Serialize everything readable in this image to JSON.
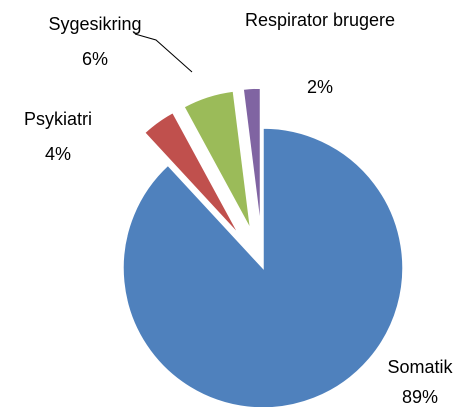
{
  "chart_data": {
    "type": "pie",
    "categories": [
      "Somatik",
      "Psykiatri",
      "Sygesikring",
      "Respirator brugere"
    ],
    "values": [
      89,
      4,
      6,
      2
    ],
    "value_labels": [
      "89%",
      "4%",
      "6%",
      "2%"
    ],
    "colors": [
      "#4f81bd",
      "#c0504d",
      "#9bbb59",
      "#8064a2"
    ],
    "exploded": [
      false,
      true,
      true,
      true
    ]
  }
}
